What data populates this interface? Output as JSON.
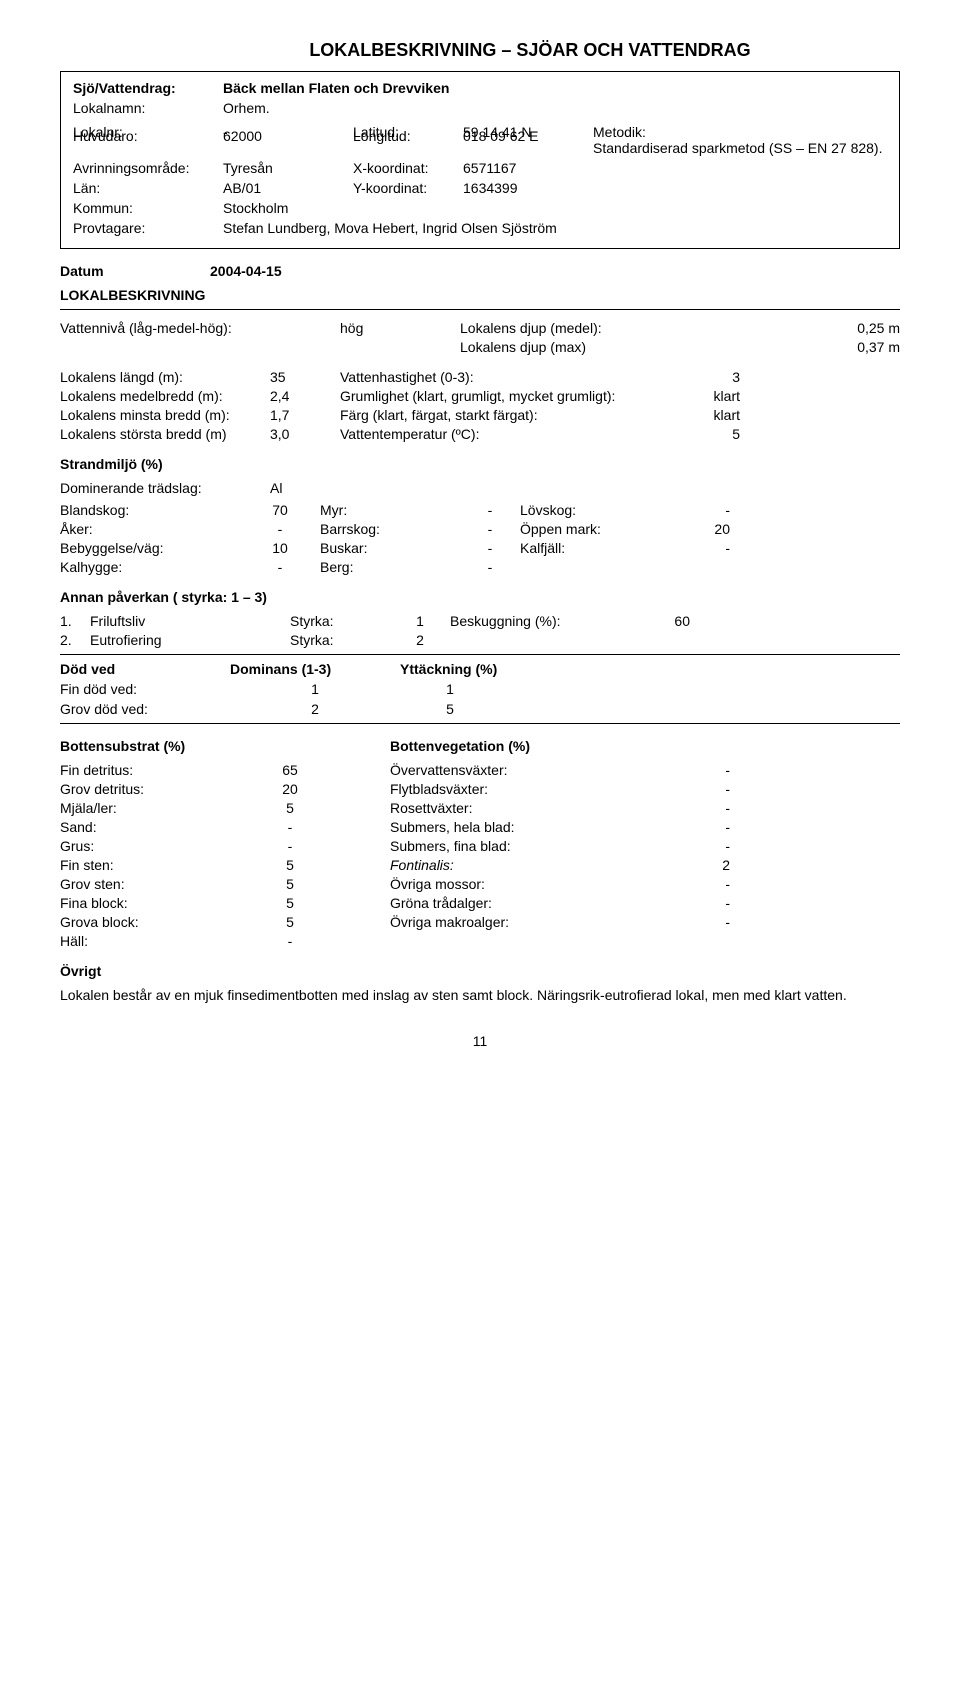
{
  "page_title": "LOKALBESKRIVNING – SJÖAR OCH VATTENDRAG",
  "header": {
    "sjo_label": "Sjö/Vattendrag:",
    "sjo_value": "Bäck mellan Flaten och Drevviken",
    "lokalnamn_label": "Lokalnamn:",
    "lokalnamn_value": "Orhem.",
    "lokalnr_label": "Lokalnr:",
    "lokalnr_value": "-",
    "latitud_label": "Latitud:",
    "latitud_value": "59 14 41 N",
    "metodik_label": "Metodik:",
    "metodik_value": "Standardiserad sparkmetod (SS – EN 27 828).",
    "huvudaro_label": "Huvudaro:",
    "huvudaro_value": "62000",
    "longitud_label": "Longitud:",
    "longitud_value": "018 09 62 E",
    "avrinning_label": "Avrinningsområde:",
    "avrinning_value": "Tyresån",
    "xkoord_label": "X-koordinat:",
    "xkoord_value": "6571167",
    "lan_label": "Län:",
    "lan_value": "AB/01",
    "ykoord_label": "Y-koordinat:",
    "ykoord_value": "1634399",
    "kommun_label": "Kommun:",
    "kommun_value": "Stockholm",
    "provtagare_label": "Provtagare:",
    "provtagare_value": "Stefan Lundberg, Mova Hebert, Ingrid Olsen Sjöström"
  },
  "datum_label": "Datum",
  "datum_value": "2004-04-15",
  "lokalbeskrivning_label": "LOKALBESKRIVNING",
  "water": {
    "level_label": "Vattennivå (låg-medel-hög):",
    "level_value": "hög",
    "djup_medel_label": "Lokalens djup (medel):",
    "djup_medel_value": "0,25 m",
    "djup_max_label": "Lokalens djup (max)",
    "djup_max_value": "0,37 m"
  },
  "dims": [
    {
      "l": "Lokalens längd (m):",
      "v": "35",
      "r": "Vattenhastighet (0-3):",
      "rv": "3"
    },
    {
      "l": "Lokalens medelbredd (m):",
      "v": "2,4",
      "r": "Grumlighet (klart, grumligt, mycket grumligt):",
      "rv": "klart"
    },
    {
      "l": "Lokalens minsta bredd (m):",
      "v": "1,7",
      "r": "Färg (klart, färgat, starkt färgat):",
      "rv": "klart"
    },
    {
      "l": "Lokalens största bredd (m)",
      "v": "3,0",
      "r": "Vattentemperatur (ºC):",
      "rv": "5"
    }
  ],
  "strand": {
    "title": "Strandmiljö (%)",
    "dom_label": "Dominerande trädslag:",
    "dom_value": "Al",
    "rows": [
      {
        "a": "Blandskog:",
        "av": "70",
        "b": "Myr:",
        "bv": "-",
        "c": "Lövskog:",
        "cv": "-"
      },
      {
        "a": "Åker:",
        "av": "-",
        "b": "Barrskog:",
        "bv": "-",
        "c": "Öppen mark:",
        "cv": "20"
      },
      {
        "a": "Bebyggelse/väg:",
        "av": "10",
        "b": "Buskar:",
        "bv": "-",
        "c": "Kalfjäll:",
        "cv": "-"
      },
      {
        "a": "Kalhygge:",
        "av": "-",
        "b": "Berg:",
        "bv": "-",
        "c": "",
        "cv": ""
      }
    ]
  },
  "annan": {
    "title": "Annan påverkan ( styrka: 1 – 3)",
    "row1_num": "1.",
    "row1_lbl": "Friluftsliv",
    "row1_styrk": "Styrka:",
    "row1_sv": "1",
    "row1_besk": "Beskuggning (%):",
    "row1_bv": "60",
    "row2_num": "2.",
    "row2_lbl": "Eutrofiering",
    "row2_styrk": "Styrka:",
    "row2_sv": "2"
  },
  "dodved": {
    "h1": "Död ved",
    "h2": "Dominans (1-3)",
    "h3": "Yttäckning (%)",
    "r1_l": "Fin död ved:",
    "r1_a": "1",
    "r1_b": "1",
    "r2_l": "Grov död ved:",
    "r2_a": "2",
    "r2_b": "5"
  },
  "botten": {
    "h1": "Bottensubstrat (%)",
    "h2": "Bottenvegetation (%)",
    "rows": [
      {
        "a": "Fin detritus:",
        "av": "65",
        "b": "Övervattensväxter:",
        "bv": "-"
      },
      {
        "a": "Grov detritus:",
        "av": "20",
        "b": "Flytbladsväxter:",
        "bv": "-"
      },
      {
        "a": "Mjäla/ler:",
        "av": "5",
        "b": "Rosettväxter:",
        "bv": "-"
      },
      {
        "a": "Sand:",
        "av": "-",
        "b": "Submers, hela blad:",
        "bv": "-"
      },
      {
        "a": "Grus:",
        "av": "-",
        "b": "Submers, fina blad:",
        "bv": "-"
      },
      {
        "a": "Fin sten:",
        "av": "5",
        "b": "Fontinalis:",
        "bv": "2",
        "bitalic": true
      },
      {
        "a": "Grov sten:",
        "av": "5",
        "b": "Övriga mossor:",
        "bv": "-"
      },
      {
        "a": "Fina block:",
        "av": "5",
        "b": "Gröna trådalger:",
        "bv": "-"
      },
      {
        "a": "Grova block:",
        "av": "5",
        "b": "Övriga makroalger:",
        "bv": "-"
      },
      {
        "a": "Häll:",
        "av": "-",
        "b": "",
        "bv": ""
      }
    ]
  },
  "ovrigt": {
    "title": "Övrigt",
    "text": "Lokalen består av en mjuk finsedimentbotten med inslag av sten samt block. Näringsrik-eutrofierad lokal, men med klart vatten."
  },
  "page_number": "11"
}
